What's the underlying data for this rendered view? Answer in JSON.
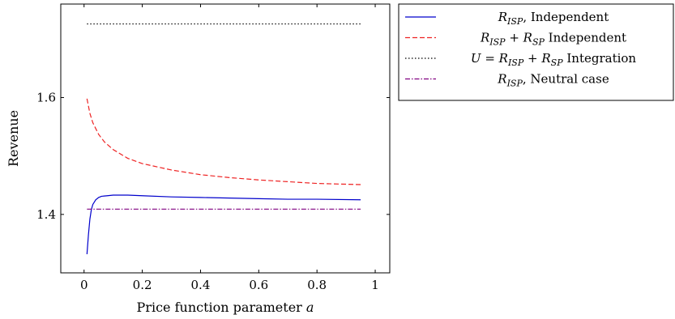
{
  "chart_data": {
    "type": "line",
    "title": "",
    "xlabel": "Price function parameter a",
    "ylabel": "Revenue",
    "xlim": [
      -0.08,
      1.05
    ],
    "ylim": [
      1.3,
      1.76
    ],
    "xticks": [
      0,
      0.2,
      0.4,
      0.6,
      0.8,
      1
    ],
    "xtick_labels": [
      "0",
      "0.2",
      "0.4",
      "0.6",
      "0.8",
      "1"
    ],
    "yticks": [
      1.4,
      1.6
    ],
    "ytick_labels": [
      "1.4",
      "1.6"
    ],
    "grid": false,
    "legend_position": "outside-right-top",
    "series": [
      {
        "name": "R_ISP, Independent",
        "legend": {
          "math": "R",
          "sub": "ISP",
          "text": ", Independent"
        },
        "color": "#0000cc",
        "style": "solid",
        "x": [
          0.01,
          0.015,
          0.02,
          0.025,
          0.03,
          0.04,
          0.05,
          0.06,
          0.08,
          0.1,
          0.12,
          0.15,
          0.2,
          0.3,
          0.4,
          0.5,
          0.6,
          0.7,
          0.8,
          0.95
        ],
        "y": [
          1.332,
          1.365,
          1.392,
          1.408,
          1.417,
          1.425,
          1.429,
          1.431,
          1.432,
          1.433,
          1.433,
          1.433,
          1.432,
          1.43,
          1.429,
          1.428,
          1.427,
          1.426,
          1.426,
          1.425
        ]
      },
      {
        "name": "R_ISP + R_SP Independent",
        "legend": {
          "math": "R",
          "sub": "ISP",
          "math2": " + R",
          "sub2": "SP",
          "text": " Independent"
        },
        "color": "#ee2222",
        "style": "dashed",
        "x": [
          0.01,
          0.02,
          0.03,
          0.05,
          0.07,
          0.1,
          0.15,
          0.2,
          0.3,
          0.4,
          0.5,
          0.6,
          0.7,
          0.8,
          0.95
        ],
        "y": [
          1.598,
          1.573,
          1.557,
          1.537,
          1.524,
          1.511,
          1.496,
          1.487,
          1.476,
          1.468,
          1.463,
          1.459,
          1.456,
          1.453,
          1.451
        ]
      },
      {
        "name": "U = R_ISP + R_SP Integration",
        "legend": {
          "math": "U = R",
          "sub": "ISP",
          "math2": " + R",
          "sub2": "SP",
          "text": " Integration"
        },
        "color": "#000000",
        "style": "dotted",
        "x": [
          0.01,
          0.95
        ],
        "y": [
          1.726,
          1.726
        ]
      },
      {
        "name": "R_ISP, Neutral case",
        "legend": {
          "math": "R",
          "sub": "ISP",
          "text": ", Neutral case"
        },
        "color": "#800080",
        "style": "dashdot",
        "x": [
          0.01,
          0.95
        ],
        "y": [
          1.409,
          1.409
        ]
      }
    ]
  }
}
